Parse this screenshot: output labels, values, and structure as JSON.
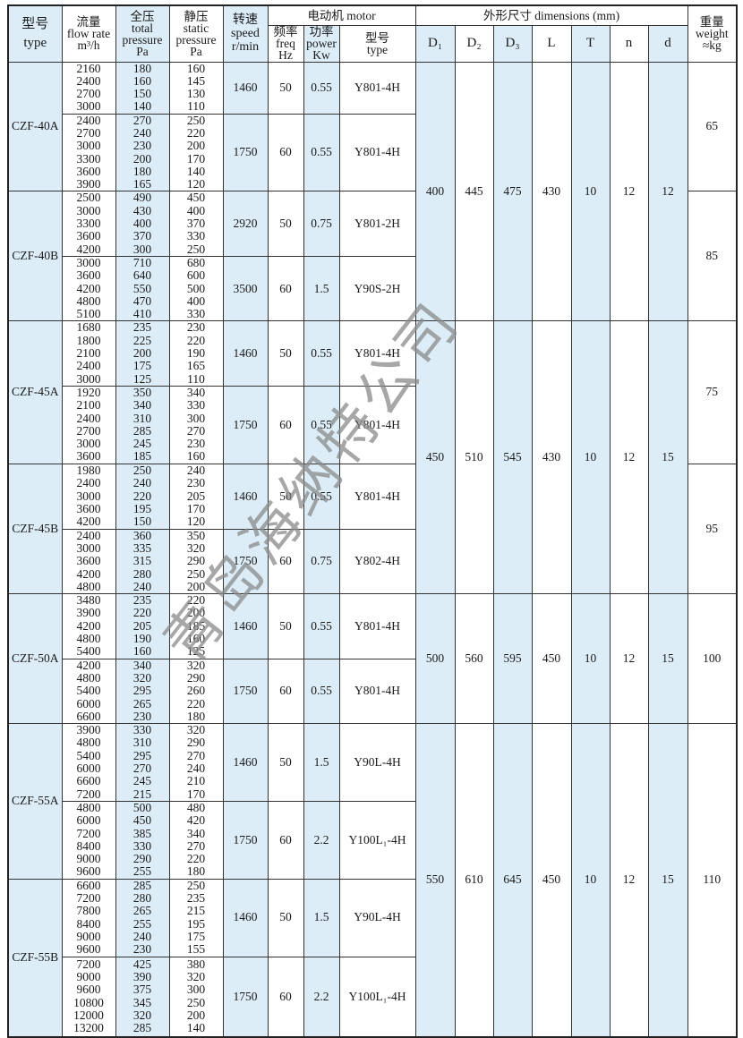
{
  "header": {
    "type": [
      "型号",
      "type"
    ],
    "flow": [
      "流量",
      "flow rate",
      "m³/h"
    ],
    "total": [
      "全压",
      "total",
      "pressure",
      "Pa"
    ],
    "static": [
      "静压",
      "static",
      "pressure",
      "Pa"
    ],
    "speed": [
      "转速",
      "speed",
      "r/min"
    ],
    "motor": "电动机  motor",
    "freq": [
      "频率",
      "freq",
      "Hz"
    ],
    "power": [
      "功率",
      "power",
      "Kw"
    ],
    "motor_type": [
      "型号",
      "type"
    ],
    "dimensions": "外形尺寸    dimensions (mm)",
    "dims": [
      "D₁",
      "D₂",
      "D₃",
      "L",
      "T",
      "n",
      "d"
    ],
    "weight": [
      "重量",
      "weight",
      "≈kg"
    ]
  },
  "colors": {
    "highlight": "#dcedf7",
    "border": "#333333"
  },
  "models": [
    {
      "type": "CZF-40A",
      "weight": "65",
      "groups": [
        {
          "flow": [
            "2160",
            "2400",
            "2700",
            "3000"
          ],
          "total": [
            "180",
            "160",
            "150",
            "140"
          ],
          "static": [
            "160",
            "145",
            "130",
            "110"
          ],
          "speed": "1460",
          "freq": "50",
          "power": "0.55",
          "motor": "Y801-4H"
        },
        {
          "flow": [
            "2400",
            "2700",
            "3000",
            "3300",
            "3600",
            "3900"
          ],
          "total": [
            "270",
            "240",
            "230",
            "200",
            "180",
            "165"
          ],
          "static": [
            "250",
            "220",
            "200",
            "170",
            "140",
            "120"
          ],
          "speed": "1750",
          "freq": "60",
          "power": "0.55",
          "motor": "Y801-4H"
        }
      ]
    },
    {
      "type": "CZF-40B",
      "weight": "85",
      "groups": [
        {
          "flow": [
            "2500",
            "3000",
            "3300",
            "3600",
            "4200"
          ],
          "total": [
            "490",
            "430",
            "400",
            "370",
            "300"
          ],
          "static": [
            "450",
            "400",
            "370",
            "330",
            "250"
          ],
          "speed": "2920",
          "freq": "50",
          "power": "0.75",
          "motor": "Y801-2H"
        },
        {
          "flow": [
            "3000",
            "3600",
            "4200",
            "4800",
            "5100"
          ],
          "total": [
            "710",
            "640",
            "550",
            "470",
            "410"
          ],
          "static": [
            "680",
            "600",
            "500",
            "400",
            "330"
          ],
          "speed": "3500",
          "freq": "60",
          "power": "1.5",
          "motor": "Y90S-2H"
        }
      ]
    },
    {
      "type": "CZF-45A",
      "weight": "75",
      "groups": [
        {
          "flow": [
            "1680",
            "1800",
            "2100",
            "2400",
            "3000"
          ],
          "total": [
            "235",
            "225",
            "200",
            "175",
            "125"
          ],
          "static": [
            "230",
            "220",
            "190",
            "165",
            "110"
          ],
          "speed": "1460",
          "freq": "50",
          "power": "0.55",
          "motor": "Y801-4H"
        },
        {
          "flow": [
            "1920",
            "2100",
            "2400",
            "2700",
            "3000",
            "3600"
          ],
          "total": [
            "350",
            "340",
            "310",
            "285",
            "245",
            "185"
          ],
          "static": [
            "340",
            "330",
            "300",
            "270",
            "230",
            "160"
          ],
          "speed": "1750",
          "freq": "60",
          "power": "0.55",
          "motor": "Y801-4H"
        }
      ]
    },
    {
      "type": "CZF-45B",
      "weight": "95",
      "groups": [
        {
          "flow": [
            "1980",
            "2400",
            "3000",
            "3600",
            "4200"
          ],
          "total": [
            "250",
            "240",
            "220",
            "195",
            "150"
          ],
          "static": [
            "240",
            "230",
            "205",
            "170",
            "120"
          ],
          "speed": "1460",
          "freq": "50",
          "power": "0.55",
          "motor": "Y801-4H"
        },
        {
          "flow": [
            "2400",
            "3000",
            "3600",
            "4200",
            "4800"
          ],
          "total": [
            "360",
            "335",
            "315",
            "280",
            "240"
          ],
          "static": [
            "350",
            "320",
            "290",
            "250",
            "200"
          ],
          "speed": "1750",
          "freq": "60",
          "power": "0.75",
          "motor": "Y802-4H"
        }
      ]
    },
    {
      "type": "CZF-50A",
      "weight": "100",
      "groups": [
        {
          "flow": [
            "3480",
            "3900",
            "4200",
            "4800",
            "5400"
          ],
          "total": [
            "235",
            "220",
            "205",
            "190",
            "160"
          ],
          "static": [
            "220",
            "200",
            "185",
            "160",
            "125"
          ],
          "speed": "1460",
          "freq": "50",
          "power": "0.55",
          "motor": "Y801-4H"
        },
        {
          "flow": [
            "4200",
            "4800",
            "5400",
            "6000",
            "6600"
          ],
          "total": [
            "340",
            "320",
            "295",
            "265",
            "230"
          ],
          "static": [
            "320",
            "290",
            "260",
            "220",
            "180"
          ],
          "speed": "1750",
          "freq": "60",
          "power": "0.55",
          "motor": "Y801-4H"
        }
      ]
    },
    {
      "type": "CZF-55A",
      "weight": "110",
      "groups": [
        {
          "flow": [
            "3900",
            "4800",
            "5400",
            "6000",
            "6600",
            "7200"
          ],
          "total": [
            "330",
            "310",
            "295",
            "270",
            "245",
            "215"
          ],
          "static": [
            "320",
            "290",
            "270",
            "240",
            "210",
            "170"
          ],
          "speed": "1460",
          "freq": "50",
          "power": "1.5",
          "motor": "Y90L-4H"
        },
        {
          "flow": [
            "4800",
            "6000",
            "7200",
            "8400",
            "9000",
            "9600"
          ],
          "total": [
            "500",
            "450",
            "385",
            "330",
            "290",
            "255"
          ],
          "static": [
            "480",
            "420",
            "340",
            "270",
            "220",
            "180"
          ],
          "speed": "1750",
          "freq": "60",
          "power": "2.2",
          "motor": "Y100L₁-4H"
        }
      ]
    },
    {
      "type": "CZF-55B",
      "weight": "110",
      "groups": [
        {
          "flow": [
            "6600",
            "7200",
            "7800",
            "8400",
            "9000",
            "9600"
          ],
          "total": [
            "285",
            "280",
            "265",
            "255",
            "240",
            "230"
          ],
          "static": [
            "250",
            "235",
            "215",
            "195",
            "175",
            "155"
          ],
          "speed": "1460",
          "freq": "50",
          "power": "1.5",
          "motor": "Y90L-4H"
        },
        {
          "flow": [
            "7200",
            "9000",
            "9600",
            "10800",
            "12000",
            "13200"
          ],
          "total": [
            "425",
            "390",
            "375",
            "345",
            "320",
            "285"
          ],
          "static": [
            "380",
            "320",
            "300",
            "250",
            "200",
            "140"
          ],
          "speed": "1750",
          "freq": "60",
          "power": "2.2",
          "motor": "Y100L₁-4H"
        }
      ]
    }
  ],
  "dimension_sets": [
    {
      "values": [
        "400",
        "445",
        "475",
        "430",
        "10",
        "12",
        "12"
      ]
    },
    {
      "values": [
        "450",
        "510",
        "545",
        "430",
        "10",
        "12",
        "15"
      ]
    },
    {
      "values": [
        "500",
        "560",
        "595",
        "450",
        "10",
        "12",
        "15"
      ]
    },
    {
      "values": [
        "550",
        "610",
        "645",
        "450",
        "10",
        "12",
        "15"
      ]
    }
  ],
  "watermark": "青岛海纳特公司"
}
